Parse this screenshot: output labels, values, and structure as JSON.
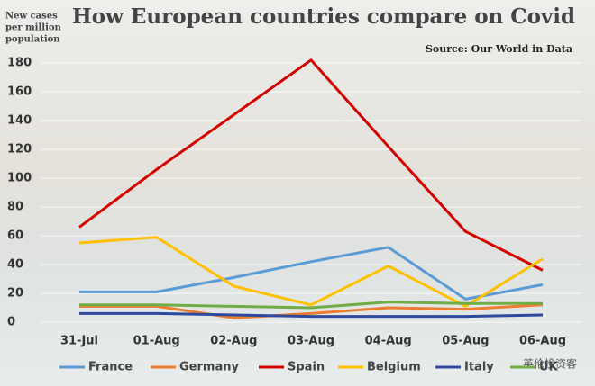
{
  "chart_data": {
    "type": "line",
    "title": "How European countries compare on Covid",
    "ylabel": [
      "New cases",
      "per million",
      "population"
    ],
    "source": "Source: Our World in Data",
    "watermark": "英伦投资客",
    "categories": [
      "31-Jul",
      "01-Aug",
      "02-Aug",
      "03-Aug",
      "04-Aug",
      "05-Aug",
      "06-Aug"
    ],
    "series": [
      {
        "name": "France",
        "color": "#5b9bd5",
        "values": [
          21,
          21,
          31,
          42,
          52,
          16,
          26
        ]
      },
      {
        "name": "Germany",
        "color": "#ed7d31",
        "values": [
          11,
          11,
          3,
          6,
          10,
          9,
          12
        ]
      },
      {
        "name": "Spain",
        "color": "#d40000",
        "values": [
          66,
          106,
          144,
          182,
          122,
          63,
          36
        ]
      },
      {
        "name": "Belgium",
        "color": "#ffc000",
        "values": [
          55,
          59,
          25,
          12,
          39,
          11,
          44
        ]
      },
      {
        "name": "Italy",
        "color": "#2e4a9e",
        "values": [
          6,
          6,
          5,
          4,
          4,
          4,
          5
        ]
      },
      {
        "name": "UK",
        "color": "#70ad47",
        "values": [
          12,
          12,
          11,
          10,
          14,
          13,
          13
        ]
      }
    ],
    "ylim": [
      0,
      180
    ],
    "yticks": [
      0,
      20,
      40,
      60,
      80,
      100,
      120,
      140,
      160,
      180
    ],
    "grid": true
  }
}
